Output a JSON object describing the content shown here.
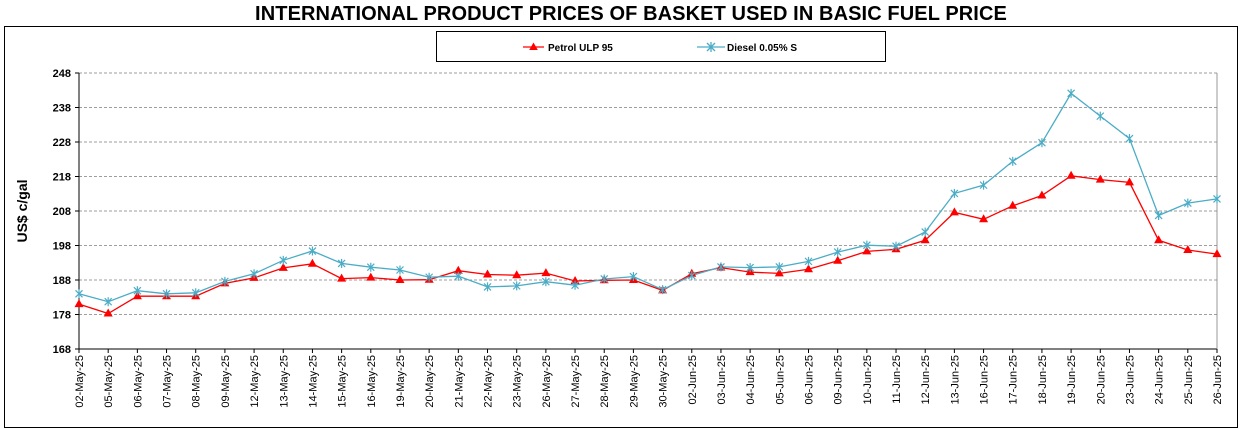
{
  "chart_data": {
    "type": "line",
    "title": "INTERNATIONAL PRODUCT PRICES OF BASKET USED IN BASIC FUEL PRICE",
    "xlabel": "",
    "ylabel": "US$ c/gal",
    "ylim": [
      168,
      248
    ],
    "yticks": [
      168,
      178,
      188,
      198,
      208,
      218,
      228,
      238,
      248
    ],
    "grid": "horizontal dashed",
    "legend_position": "top-center",
    "categories": [
      "02-May-25",
      "05-May-25",
      "06-May-25",
      "07-May-25",
      "08-May-25",
      "09-May-25",
      "12-May-25",
      "13-May-25",
      "14-May-25",
      "15-May-25",
      "16-May-25",
      "19-May-25",
      "20-May-25",
      "21-May-25",
      "22-May-25",
      "23-May-25",
      "26-May-25",
      "27-May-25",
      "28-May-25",
      "29-May-25",
      "30-May-25",
      "02-Jun-25",
      "03-Jun-25",
      "04-Jun-25",
      "05-Jun-25",
      "06-Jun-25",
      "09-Jun-25",
      "10-Jun-25",
      "11-Jun-25",
      "12-Jun-25",
      "13-Jun-25",
      "16-Jun-25",
      "17-Jun-25",
      "18-Jun-25",
      "19-Jun-25",
      "20-Jun-25",
      "23-Jun-25",
      "24-Jun-25",
      "25-Jun-25",
      "26-Jun-25"
    ],
    "series": [
      {
        "name": "Petrol ULP 95",
        "color": "#ff0000",
        "marker": "triangle",
        "values": [
          181.0,
          178.3,
          183.3,
          183.3,
          183.3,
          187.0,
          188.6,
          191.5,
          192.7,
          188.4,
          188.7,
          188.0,
          188.1,
          190.7,
          189.6,
          189.4,
          190.0,
          187.7,
          187.9,
          188.0,
          185.0,
          189.8,
          191.6,
          190.3,
          189.9,
          191.1,
          193.6,
          196.3,
          196.9,
          199.5,
          207.6,
          205.6,
          209.5,
          212.5,
          218.2,
          217.1,
          216.3,
          199.5,
          196.7,
          195.5
        ]
      },
      {
        "name": "Diesel 0.05% S",
        "color": "#4bacc6",
        "marker": "star",
        "values": [
          184.0,
          181.7,
          184.9,
          184.0,
          184.3,
          187.6,
          189.8,
          193.7,
          196.4,
          192.8,
          191.7,
          190.9,
          188.8,
          189.1,
          186.0,
          186.3,
          187.5,
          186.5,
          188.3,
          189.0,
          185.2,
          189.3,
          191.8,
          191.6,
          191.8,
          193.4,
          196.1,
          198.1,
          197.8,
          201.9,
          213.1,
          215.5,
          222.4,
          227.8,
          242.1,
          235.5,
          229.0,
          206.7,
          210.3,
          211.5
        ]
      }
    ]
  }
}
